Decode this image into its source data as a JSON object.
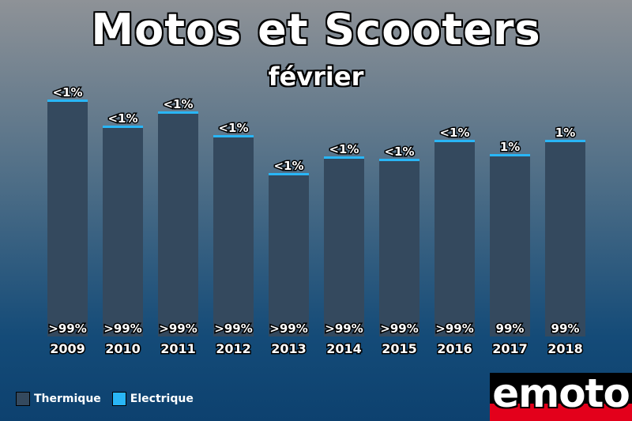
{
  "title": "Motos et Scooters",
  "subtitle": "février",
  "legend": [
    {
      "label": "Thermique",
      "color": "#34495e"
    },
    {
      "label": "Electrique",
      "color": "#29b6f6"
    }
  ],
  "logo_text": "emoto",
  "chart_data": {
    "type": "bar",
    "stacked": true,
    "title": "Motos et Scooters",
    "subtitle": "février",
    "categories": [
      "2009",
      "2010",
      "2011",
      "2012",
      "2013",
      "2014",
      "2015",
      "2016",
      "2017",
      "2018"
    ],
    "totals": [
      100,
      89,
      95,
      85,
      69,
      76,
      75,
      83,
      77,
      83
    ],
    "series": [
      {
        "name": "Thermique",
        "color": "#34495e",
        "share": [
          99.6,
          99.6,
          99.6,
          99.6,
          99.6,
          99.6,
          99.6,
          99.6,
          99,
          99
        ],
        "labels": [
          ">99%",
          ">99%",
          ">99%",
          ">99%",
          ">99%",
          ">99%",
          ">99%",
          ">99%",
          "99%",
          "99%"
        ]
      },
      {
        "name": "Electrique",
        "color": "#29b6f6",
        "share": [
          0.4,
          0.4,
          0.4,
          0.4,
          0.4,
          0.4,
          0.4,
          0.4,
          1,
          1
        ],
        "labels": [
          "<1%",
          "<1%",
          "<1%",
          "<1%",
          "<1%",
          "<1%",
          "<1%",
          "<1%",
          "1%",
          "1%"
        ]
      }
    ],
    "yaxis_visible": false,
    "legend_position": "bottom-left",
    "grid": false
  }
}
